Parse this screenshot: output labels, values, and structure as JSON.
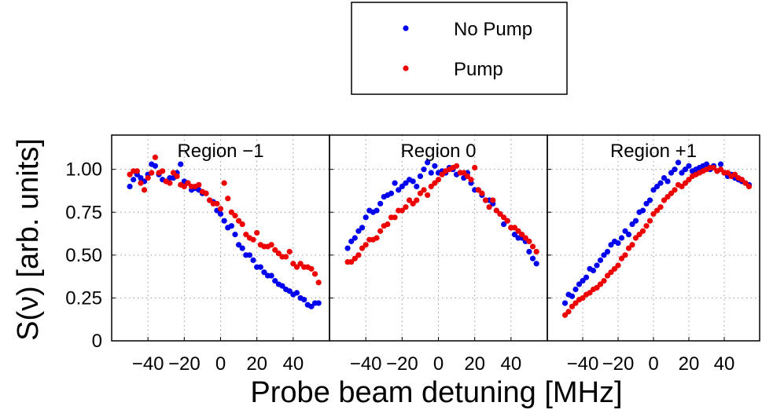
{
  "chart_data": {
    "type": "scatter",
    "ylabel": "S(ν) [arb. units]",
    "xlabel": "Probe beam detuning [MHz]",
    "ylim": [
      0,
      1.2
    ],
    "xlim": [
      -60,
      60
    ],
    "y_ticks": [
      "0",
      "0.25",
      "0.50",
      "0.75",
      "1.00"
    ],
    "y_tick_values": [
      0,
      0.25,
      0.5,
      0.75,
      1.0
    ],
    "x_ticks": [
      "−40",
      "−20",
      "0",
      "20",
      "40"
    ],
    "x_tick_values": [
      -40,
      -20,
      0,
      20,
      40
    ],
    "grid": true,
    "legend": {
      "placement": "top-center",
      "entries": [
        {
          "name": "No Pump",
          "color": "#0000ee"
        },
        {
          "name": "Pump",
          "color": "#ee0000"
        }
      ]
    },
    "panels": [
      {
        "title": "Region −1",
        "series": [
          {
            "name": "No Pump",
            "color": "#0000ee",
            "x": [
              -50,
              -48,
              -46,
              -44,
              -42,
              -40,
              -38,
              -36,
              -34,
              -32,
              -30,
              -28,
              -26,
              -24,
              -22,
              -20,
              -18,
              -16,
              -14,
              -12,
              -10,
              -8,
              -6,
              -4,
              -2,
              0,
              2,
              4,
              6,
              8,
              10,
              12,
              14,
              16,
              18,
              20,
              22,
              24,
              26,
              28,
              30,
              32,
              34,
              36,
              38,
              40,
              42,
              44,
              46,
              48,
              50,
              52,
              54
            ],
            "y": [
              0.9,
              0.94,
              0.97,
              0.95,
              0.93,
              0.97,
              1.03,
              1.02,
              0.97,
              0.94,
              0.93,
              0.95,
              0.95,
              0.98,
              1.03,
              0.93,
              0.92,
              0.88,
              0.89,
              0.88,
              0.86,
              0.86,
              0.82,
              0.81,
              0.76,
              0.74,
              0.7,
              0.66,
              0.67,
              0.62,
              0.56,
              0.54,
              0.5,
              0.5,
              0.47,
              0.43,
              0.43,
              0.4,
              0.38,
              0.38,
              0.35,
              0.33,
              0.32,
              0.3,
              0.29,
              0.27,
              0.28,
              0.25,
              0.24,
              0.21,
              0.2,
              0.22,
              0.22
            ]
          },
          {
            "name": "Pump",
            "color": "#ee0000",
            "x": [
              -50,
              -48,
              -46,
              -44,
              -42,
              -40,
              -38,
              -36,
              -34,
              -32,
              -30,
              -28,
              -26,
              -24,
              -22,
              -20,
              -18,
              -16,
              -14,
              -12,
              -10,
              -8,
              -6,
              -4,
              -2,
              0,
              2,
              4,
              6,
              8,
              10,
              12,
              14,
              16,
              18,
              20,
              22,
              24,
              26,
              28,
              30,
              32,
              34,
              36,
              38,
              40,
              42,
              44,
              46,
              48,
              50,
              52,
              54
            ],
            "y": [
              0.97,
              0.99,
              0.99,
              0.92,
              0.88,
              0.95,
              0.98,
              1.07,
              0.98,
              0.99,
              0.93,
              0.92,
              0.98,
              0.96,
              0.91,
              0.9,
              0.92,
              0.9,
              0.9,
              0.91,
              0.87,
              0.86,
              0.82,
              0.8,
              0.8,
              0.77,
              0.92,
              0.83,
              0.75,
              0.73,
              0.7,
              0.68,
              0.62,
              0.6,
              0.59,
              0.63,
              0.56,
              0.55,
              0.55,
              0.56,
              0.53,
              0.51,
              0.49,
              0.49,
              0.52,
              0.45,
              0.43,
              0.45,
              0.43,
              0.43,
              0.42,
              0.39,
              0.34
            ]
          }
        ]
      },
      {
        "title": "Region 0",
        "series": [
          {
            "name": "No Pump",
            "color": "#0000ee",
            "x": [
              -50,
              -48,
              -46,
              -44,
              -42,
              -40,
              -38,
              -36,
              -34,
              -32,
              -30,
              -28,
              -26,
              -24,
              -22,
              -20,
              -18,
              -16,
              -14,
              -12,
              -10,
              -8,
              -6,
              -4,
              -2,
              0,
              2,
              4,
              6,
              8,
              10,
              12,
              14,
              16,
              18,
              20,
              22,
              24,
              26,
              28,
              30,
              32,
              34,
              36,
              38,
              40,
              42,
              44,
              46,
              48,
              50,
              52,
              54
            ],
            "y": [
              0.54,
              0.58,
              0.6,
              0.64,
              0.66,
              0.72,
              0.76,
              0.75,
              0.76,
              0.8,
              0.84,
              0.85,
              0.86,
              0.92,
              0.88,
              0.9,
              0.92,
              0.94,
              0.93,
              0.9,
              0.96,
              1.0,
              1.04,
              0.98,
              1.02,
              0.98,
              0.99,
              0.98,
              1.01,
              1.0,
              0.97,
              0.98,
              0.95,
              0.98,
              0.92,
              0.88,
              0.88,
              0.85,
              0.82,
              0.82,
              0.8,
              0.76,
              0.74,
              0.68,
              0.7,
              0.66,
              0.62,
              0.6,
              0.6,
              0.58,
              0.52,
              0.48,
              0.45
            ]
          },
          {
            "name": "Pump",
            "color": "#ee0000",
            "x": [
              -50,
              -48,
              -46,
              -44,
              -42,
              -40,
              -38,
              -36,
              -34,
              -32,
              -30,
              -28,
              -26,
              -24,
              -22,
              -20,
              -18,
              -16,
              -14,
              -12,
              -10,
              -8,
              -6,
              -4,
              -2,
              0,
              2,
              4,
              6,
              8,
              10,
              12,
              14,
              16,
              18,
              20,
              22,
              24,
              26,
              28,
              30,
              32,
              34,
              36,
              38,
              40,
              42,
              44,
              46,
              48,
              50,
              52,
              54
            ],
            "y": [
              0.46,
              0.46,
              0.48,
              0.5,
              0.54,
              0.56,
              0.59,
              0.59,
              0.6,
              0.64,
              0.67,
              0.68,
              0.72,
              0.72,
              0.76,
              0.76,
              0.78,
              0.82,
              0.8,
              0.82,
              0.86,
              0.88,
              0.85,
              0.9,
              0.92,
              0.94,
              0.97,
              0.99,
              1.0,
              1.01,
              1.02,
              0.98,
              0.98,
              0.96,
              0.94,
              1.01,
              0.88,
              0.86,
              0.82,
              0.78,
              0.82,
              0.76,
              0.74,
              0.72,
              0.7,
              0.66,
              0.66,
              0.64,
              0.62,
              0.6,
              0.58,
              0.55,
              0.52
            ]
          }
        ]
      },
      {
        "title": "Region +1",
        "series": [
          {
            "name": "No Pump",
            "color": "#0000ee",
            "x": [
              -50,
              -48,
              -46,
              -44,
              -42,
              -40,
              -38,
              -36,
              -34,
              -32,
              -30,
              -28,
              -26,
              -24,
              -22,
              -20,
              -18,
              -16,
              -14,
              -12,
              -10,
              -8,
              -6,
              -4,
              -2,
              0,
              2,
              4,
              6,
              8,
              10,
              12,
              14,
              16,
              18,
              20,
              22,
              24,
              26,
              28,
              30,
              32,
              34,
              36,
              38,
              40,
              42,
              44,
              46,
              48,
              50,
              52,
              54
            ],
            "y": [
              0.22,
              0.27,
              0.26,
              0.3,
              0.33,
              0.35,
              0.37,
              0.42,
              0.41,
              0.44,
              0.47,
              0.5,
              0.52,
              0.56,
              0.58,
              0.57,
              0.6,
              0.64,
              0.62,
              0.68,
              0.7,
              0.75,
              0.76,
              0.8,
              0.82,
              0.88,
              0.9,
              0.92,
              0.95,
              0.93,
              0.98,
              1.0,
              1.04,
              0.98,
              1.0,
              1.02,
              0.99,
              1.0,
              1.01,
              1.02,
              1.03,
              1.0,
              1.02,
              0.99,
              1.03,
              0.98,
              0.96,
              0.97,
              0.95,
              0.94,
              0.93,
              0.92,
              0.91
            ]
          },
          {
            "name": "Pump",
            "color": "#ee0000",
            "x": [
              -50,
              -48,
              -46,
              -44,
              -42,
              -40,
              -38,
              -36,
              -34,
              -32,
              -30,
              -28,
              -26,
              -24,
              -22,
              -20,
              -18,
              -16,
              -14,
              -12,
              -10,
              -8,
              -6,
              -4,
              -2,
              0,
              2,
              4,
              6,
              8,
              10,
              12,
              14,
              16,
              18,
              20,
              22,
              24,
              26,
              28,
              30,
              32,
              34,
              36,
              38,
              40,
              42,
              44,
              46,
              48,
              50,
              52,
              54
            ],
            "y": [
              0.15,
              0.17,
              0.2,
              0.22,
              0.24,
              0.25,
              0.27,
              0.28,
              0.3,
              0.31,
              0.33,
              0.35,
              0.38,
              0.4,
              0.42,
              0.44,
              0.48,
              0.5,
              0.54,
              0.56,
              0.6,
              0.62,
              0.64,
              0.67,
              0.7,
              0.74,
              0.76,
              0.78,
              0.82,
              0.84,
              0.86,
              0.88,
              0.91,
              0.9,
              0.92,
              0.94,
              0.96,
              0.97,
              0.98,
              0.99,
              1.0,
              1.01,
              1.01,
              0.99,
              1.0,
              0.98,
              0.98,
              0.96,
              0.97,
              0.95,
              0.94,
              0.92,
              0.9
            ]
          }
        ]
      }
    ]
  }
}
